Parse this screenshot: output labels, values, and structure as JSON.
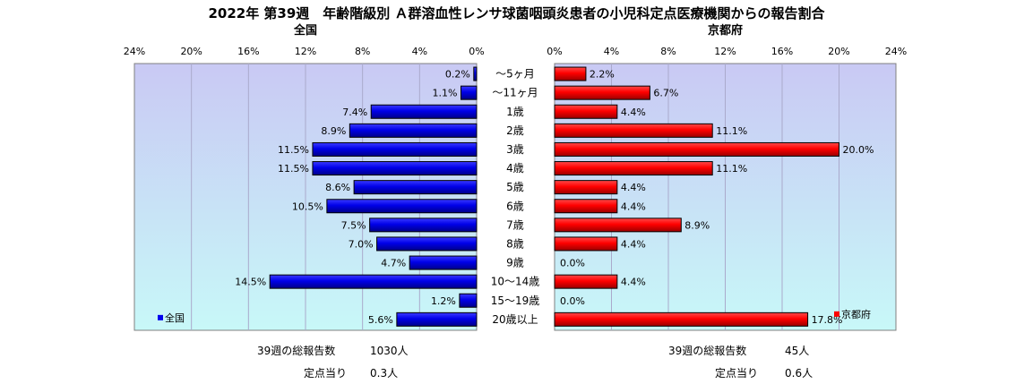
{
  "title": "2022年 第39週　年齢階級別 Ａ群溶血性レンサ球菌咽頭炎患者の小児科定点医療機関からの報告割合",
  "colors": {
    "left_bar": "#0000ee",
    "right_bar": "#ff0000",
    "plot_bg_top": "#c9c9f4",
    "plot_bg_bottom": "#c8f8f8"
  },
  "chart_data": [
    {
      "type": "bar",
      "orientation": "horizontal",
      "title": "全国",
      "legend": "全国",
      "legend_placement": "bottom-left",
      "xlim": [
        0,
        24
      ],
      "x_reversed": true,
      "ticks": [
        "24%",
        "20%",
        "16%",
        "12%",
        "8%",
        "4%",
        "0%"
      ],
      "tick_values": [
        24,
        20,
        16,
        12,
        8,
        4,
        0
      ],
      "grid": true,
      "categories": [
        "～5ヶ月",
        "～11ヶ月",
        "1歳",
        "2歳",
        "3歳",
        "4歳",
        "5歳",
        "6歳",
        "7歳",
        "8歳",
        "9歳",
        "10～14歳",
        "15～19歳",
        "20歳以上"
      ],
      "values": [
        0.2,
        1.1,
        7.4,
        8.9,
        11.5,
        11.5,
        8.6,
        10.5,
        7.5,
        7.0,
        4.7,
        14.5,
        1.2,
        5.6
      ],
      "labels": [
        "0.2%",
        "1.1%",
        "7.4%",
        "8.9%",
        "11.5%",
        "11.5%",
        "8.6%",
        "10.5%",
        "7.5%",
        "7.0%",
        "4.7%",
        "14.5%",
        "1.2%",
        "5.6%"
      ]
    },
    {
      "type": "bar",
      "orientation": "horizontal",
      "title": "京都府",
      "legend": "京都府",
      "legend_placement": "bottom-right",
      "xlim": [
        0,
        24
      ],
      "x_reversed": false,
      "ticks": [
        "0%",
        "4%",
        "8%",
        "12%",
        "16%",
        "20%",
        "24%"
      ],
      "tick_values": [
        0,
        4,
        8,
        12,
        16,
        20,
        24
      ],
      "grid": true,
      "categories": [
        "～5ヶ月",
        "～11ヶ月",
        "1歳",
        "2歳",
        "3歳",
        "4歳",
        "5歳",
        "6歳",
        "7歳",
        "8歳",
        "9歳",
        "10～14歳",
        "15～19歳",
        "20歳以上"
      ],
      "values": [
        2.2,
        6.7,
        4.4,
        11.1,
        20.0,
        11.1,
        4.4,
        4.4,
        8.9,
        4.4,
        0.0,
        4.4,
        0.0,
        17.8
      ],
      "labels": [
        "2.2%",
        "6.7%",
        "4.4%",
        "11.1%",
        "20.0%",
        "11.1%",
        "4.4%",
        "4.4%",
        "8.9%",
        "4.4%",
        "0.0%",
        "4.4%",
        "0.0%",
        "17.8%"
      ]
    }
  ],
  "footer": {
    "left": {
      "total_label": "39週の総報告数",
      "total_value": "1030人",
      "per_label": "定点当り",
      "per_value": "0.3人"
    },
    "right": {
      "total_label": "39週の総報告数",
      "total_value": "45人",
      "per_label": "定点当り",
      "per_value": "0.6人"
    }
  }
}
